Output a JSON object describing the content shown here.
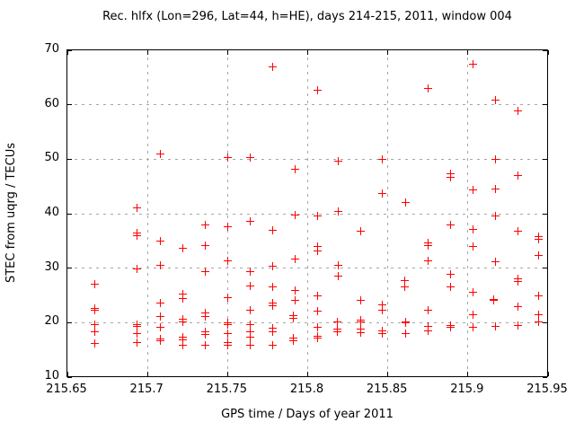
{
  "title": "Rec. hlfx (Lon=296, Lat=44, h=HE), days 214-215, 2011, window 004",
  "chart_data": {
    "type": "scatter",
    "title": "Rec. hlfx (Lon=296, Lat=44, h=HE), days 214-215, 2011, window 004",
    "xlabel": "GPS time / Days of year 2011",
    "ylabel": "STEC from uqrg / TECUs",
    "xlim": [
      215.65,
      215.95
    ],
    "ylim": [
      10,
      70
    ],
    "grid": true,
    "legend": "none",
    "marker": {
      "shape": "plus",
      "color": "#ff0000",
      "size": 9
    },
    "xticks": [
      {
        "value": 215.65,
        "label": "215.65"
      },
      {
        "value": 215.7,
        "label": "215.7"
      },
      {
        "value": 215.75,
        "label": "215.75"
      },
      {
        "value": 215.8,
        "label": "215.8"
      },
      {
        "value": 215.85,
        "label": "215.85"
      },
      {
        "value": 215.9,
        "label": "215.9"
      },
      {
        "value": 215.95,
        "label": "215.95"
      }
    ],
    "yticks": [
      {
        "value": 10,
        "label": "10"
      },
      {
        "value": 20,
        "label": "20"
      },
      {
        "value": 30,
        "label": "30"
      },
      {
        "value": 40,
        "label": "40"
      },
      {
        "value": 50,
        "label": "50"
      },
      {
        "value": 60,
        "label": "60"
      },
      {
        "value": 70,
        "label": "70"
      }
    ],
    "points": [
      [
        215.667,
        27.2
      ],
      [
        215.667,
        22.7
      ],
      [
        215.667,
        22.4
      ],
      [
        215.667,
        19.7
      ],
      [
        215.667,
        18.4
      ],
      [
        215.667,
        16.2
      ],
      [
        215.693,
        41.1
      ],
      [
        215.693,
        36.5
      ],
      [
        215.693,
        36.0
      ],
      [
        215.693,
        30.0
      ],
      [
        215.693,
        19.8
      ],
      [
        215.693,
        19.4
      ],
      [
        215.693,
        18.1
      ],
      [
        215.693,
        16.4
      ],
      [
        215.708,
        51.0
      ],
      [
        215.708,
        35.0
      ],
      [
        215.708,
        30.6
      ],
      [
        215.708,
        23.7
      ],
      [
        215.708,
        21.2
      ],
      [
        215.708,
        19.2
      ],
      [
        215.708,
        17.1
      ],
      [
        215.708,
        16.7
      ],
      [
        215.722,
        33.7
      ],
      [
        215.722,
        25.3
      ],
      [
        215.722,
        24.5
      ],
      [
        215.722,
        20.7
      ],
      [
        215.722,
        20.2
      ],
      [
        215.722,
        17.5
      ],
      [
        215.722,
        17.0
      ],
      [
        215.722,
        16.0
      ],
      [
        215.736,
        38.0
      ],
      [
        215.736,
        34.3
      ],
      [
        215.736,
        29.5
      ],
      [
        215.736,
        21.8
      ],
      [
        215.736,
        21.2
      ],
      [
        215.736,
        18.4
      ],
      [
        215.736,
        17.9
      ],
      [
        215.736,
        16.0
      ],
      [
        215.75,
        50.4
      ],
      [
        215.75,
        37.7
      ],
      [
        215.75,
        31.4
      ],
      [
        215.75,
        24.7
      ],
      [
        215.75,
        20.0
      ],
      [
        215.75,
        19.7
      ],
      [
        215.75,
        18.1
      ],
      [
        215.75,
        16.5
      ],
      [
        215.75,
        16.0
      ],
      [
        215.764,
        50.4
      ],
      [
        215.764,
        38.7
      ],
      [
        215.764,
        29.5
      ],
      [
        215.764,
        26.8
      ],
      [
        215.764,
        22.4
      ],
      [
        215.764,
        19.8
      ],
      [
        215.764,
        18.4
      ],
      [
        215.764,
        17.4
      ],
      [
        215.764,
        16.0
      ],
      [
        215.778,
        67.1
      ],
      [
        215.778,
        37.0
      ],
      [
        215.778,
        30.4
      ],
      [
        215.778,
        26.6
      ],
      [
        215.778,
        23.7
      ],
      [
        215.778,
        23.2
      ],
      [
        215.778,
        19.0
      ],
      [
        215.778,
        18.4
      ],
      [
        215.778,
        15.9
      ],
      [
        215.792,
        48.2
      ],
      [
        215.792,
        39.9
      ],
      [
        215.792,
        31.8
      ],
      [
        215.792,
        26.0
      ],
      [
        215.792,
        24.2
      ],
      [
        215.791,
        21.4
      ],
      [
        215.791,
        20.8
      ],
      [
        215.791,
        17.3
      ],
      [
        215.791,
        16.7
      ],
      [
        215.806,
        62.7
      ],
      [
        215.806,
        39.7
      ],
      [
        215.806,
        34.0
      ],
      [
        215.806,
        33.2
      ],
      [
        215.806,
        25.0
      ],
      [
        215.806,
        22.2
      ],
      [
        215.806,
        19.3
      ],
      [
        215.806,
        17.6
      ],
      [
        215.806,
        17.2
      ],
      [
        215.819,
        49.7
      ],
      [
        215.819,
        40.5
      ],
      [
        215.819,
        30.6
      ],
      [
        215.819,
        28.7
      ],
      [
        215.818,
        20.3
      ],
      [
        215.818,
        18.9
      ],
      [
        215.818,
        18.4
      ],
      [
        215.833,
        36.8
      ],
      [
        215.833,
        24.2
      ],
      [
        215.833,
        20.6
      ],
      [
        215.833,
        20.2
      ],
      [
        215.833,
        18.9
      ],
      [
        215.833,
        18.2
      ],
      [
        215.846,
        50.1
      ],
      [
        215.846,
        43.8
      ],
      [
        215.846,
        23.3
      ],
      [
        215.846,
        22.4
      ],
      [
        215.846,
        18.6
      ],
      [
        215.846,
        18.0
      ],
      [
        215.861,
        42.1
      ],
      [
        215.86,
        27.8
      ],
      [
        215.86,
        26.6
      ],
      [
        215.861,
        20.3
      ],
      [
        215.861,
        20.0
      ],
      [
        215.861,
        18.0
      ],
      [
        215.875,
        63.0
      ],
      [
        215.875,
        34.8
      ],
      [
        215.875,
        34.2
      ],
      [
        215.875,
        31.5
      ],
      [
        215.875,
        22.4
      ],
      [
        215.875,
        19.4
      ],
      [
        215.875,
        18.6
      ],
      [
        215.889,
        47.5
      ],
      [
        215.889,
        46.8
      ],
      [
        215.889,
        38.1
      ],
      [
        215.889,
        29.0
      ],
      [
        215.889,
        26.7
      ],
      [
        215.889,
        19.5
      ],
      [
        215.889,
        19.2
      ],
      [
        215.903,
        67.5
      ],
      [
        215.903,
        44.5
      ],
      [
        215.903,
        37.2
      ],
      [
        215.903,
        34.1
      ],
      [
        215.903,
        25.6
      ],
      [
        215.903,
        21.5
      ],
      [
        215.903,
        19.2
      ],
      [
        215.917,
        60.9
      ],
      [
        215.917,
        50.1
      ],
      [
        215.917,
        44.6
      ],
      [
        215.917,
        39.7
      ],
      [
        215.917,
        31.3
      ],
      [
        215.916,
        24.4
      ],
      [
        215.916,
        24.1
      ],
      [
        215.917,
        19.4
      ],
      [
        215.931,
        59.0
      ],
      [
        215.931,
        47.1
      ],
      [
        215.931,
        36.9
      ],
      [
        215.931,
        28.1
      ],
      [
        215.931,
        27.6
      ],
      [
        215.931,
        23.1
      ],
      [
        215.931,
        19.6
      ],
      [
        215.944,
        35.9
      ],
      [
        215.944,
        35.4
      ],
      [
        215.944,
        32.5
      ],
      [
        215.944,
        25.0
      ],
      [
        215.944,
        21.6
      ],
      [
        215.944,
        20.3
      ]
    ]
  }
}
